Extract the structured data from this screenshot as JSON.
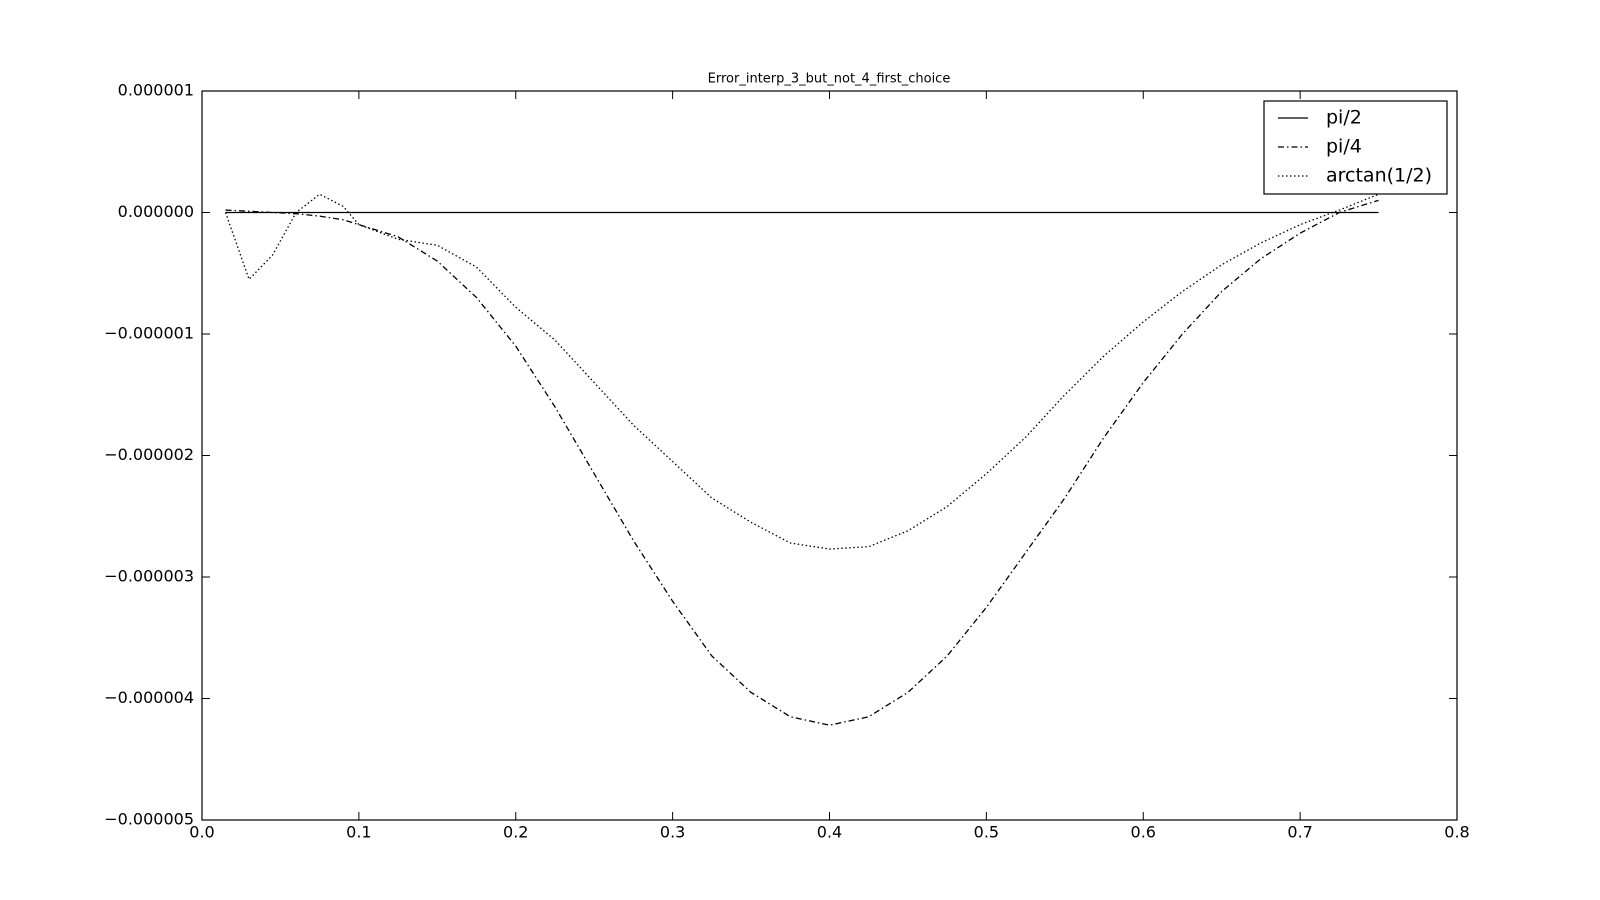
{
  "chart_data": {
    "type": "line",
    "title": "Error_interp_3_but_not_4_first_choice",
    "x": [
      0.015,
      0.03,
      0.045,
      0.06,
      0.075,
      0.09,
      0.1,
      0.125,
      0.15,
      0.175,
      0.2,
      0.225,
      0.25,
      0.275,
      0.3,
      0.325,
      0.35,
      0.375,
      0.4,
      0.425,
      0.45,
      0.475,
      0.5,
      0.525,
      0.55,
      0.575,
      0.6,
      0.625,
      0.65,
      0.675,
      0.7,
      0.725,
      0.75
    ],
    "series": [
      {
        "name": "pi/2",
        "color": "#000000",
        "linestyle": "solid",
        "values": [
          0,
          0,
          0,
          0,
          0,
          0,
          0,
          0,
          0,
          0,
          0,
          0,
          0,
          0,
          0,
          0,
          0,
          0,
          0,
          0,
          0,
          0,
          0,
          0,
          0,
          0,
          0,
          0,
          0,
          0,
          0,
          0,
          0
        ]
      },
      {
        "name": "pi/4",
        "color": "#000000",
        "linestyle": "dashdot",
        "values": [
          2e-08,
          1e-08,
          0,
          -1e-08,
          -3e-08,
          -6e-08,
          -1e-07,
          -2e-07,
          -4e-07,
          -7e-07,
          -1.1e-06,
          -1.6e-06,
          -2.15e-06,
          -2.7e-06,
          -3.2e-06,
          -3.65e-06,
          -3.95e-06,
          -4.15e-06,
          -4.22e-06,
          -4.15e-06,
          -3.95e-06,
          -3.65e-06,
          -3.25e-06,
          -2.8e-06,
          -2.35e-06,
          -1.85e-06,
          -1.4e-06,
          -1e-06,
          -6.5e-07,
          -3.8e-07,
          -1.7e-07,
          0,
          1e-07
        ]
      },
      {
        "name": "arctan(1/2)",
        "color": "#000000",
        "linestyle": "dotted",
        "values": [
          0,
          -5.5e-07,
          -3.5e-07,
          0,
          1.5e-07,
          5e-08,
          -1e-07,
          -2.2e-07,
          -2.7e-07,
          -4.5e-07,
          -7.8e-07,
          -1.05e-06,
          -1.4e-06,
          -1.75e-06,
          -2.05e-06,
          -2.35e-06,
          -2.55e-06,
          -2.72e-06,
          -2.77e-06,
          -2.75e-06,
          -2.62e-06,
          -2.42e-06,
          -2.15e-06,
          -1.85e-06,
          -1.5e-06,
          -1.18e-06,
          -9e-07,
          -6.5e-07,
          -4.3e-07,
          -2.5e-07,
          -1e-07,
          2e-08,
          1.5e-07
        ]
      }
    ],
    "xlim": [
      0,
      0.8
    ],
    "xticks": [
      {
        "value": 0,
        "label": "0.0"
      },
      0.1,
      0.2,
      0.3,
      0.4,
      0.5,
      0.6,
      0.7,
      0.8
    ],
    "ylim": [
      -5e-06,
      1e-06
    ],
    "yticks": [
      {
        "value": 1e-06,
        "label": "0.000001"
      },
      {
        "value": 0,
        "label": "0.000000"
      },
      {
        "value": -1e-06,
        "label": "−0.000001"
      },
      {
        "value": -2e-06,
        "label": "−0.000002"
      },
      {
        "value": -3e-06,
        "label": "−0.000003"
      },
      {
        "value": -4e-06,
        "label": "−0.000004"
      },
      {
        "value": -5e-06,
        "label": "−0.000005"
      }
    ],
    "grid": false,
    "legend": "upper right"
  }
}
